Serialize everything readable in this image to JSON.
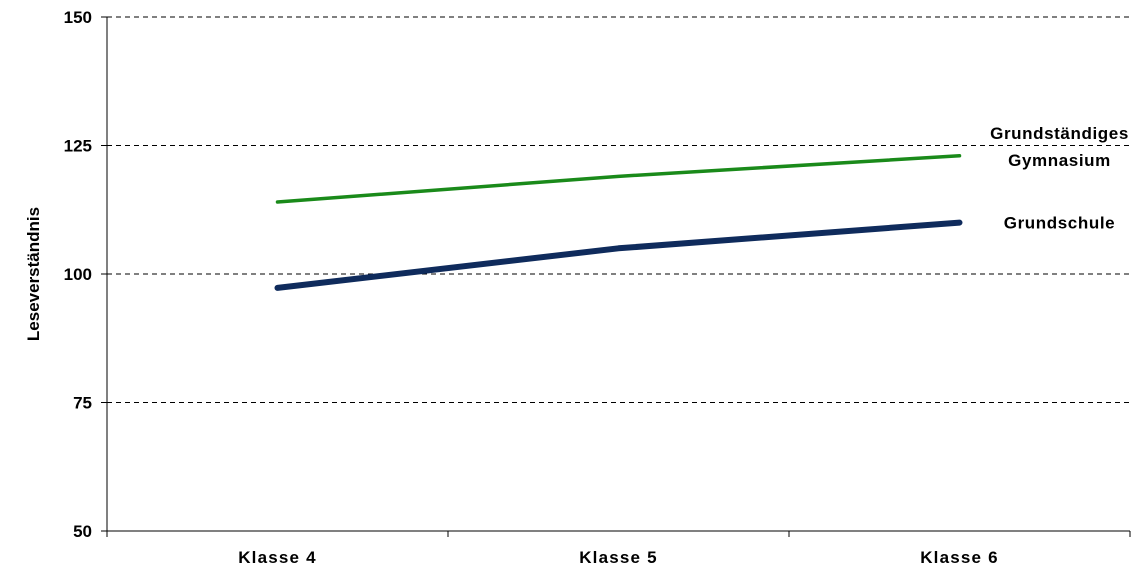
{
  "chart_data": {
    "type": "line",
    "title": "",
    "xlabel": "",
    "ylabel": "Leseverständnis",
    "categories": [
      "Klasse 4",
      "Klasse 5",
      "Klasse 6"
    ],
    "ylim": [
      50,
      150
    ],
    "yticks": [
      50,
      75,
      100,
      125,
      150
    ],
    "grid": true,
    "series": [
      {
        "name": "Grundständiges Gymnasium",
        "label_lines": [
          "Grundständiges",
          "Gymnasium"
        ],
        "values": [
          114,
          119,
          123
        ],
        "color": "#1a8a1a"
      },
      {
        "name": "Grundschule",
        "label_lines": [
          "Grundschule"
        ],
        "values": [
          97.3,
          105,
          110
        ],
        "color": "#0f2b5c"
      }
    ]
  }
}
